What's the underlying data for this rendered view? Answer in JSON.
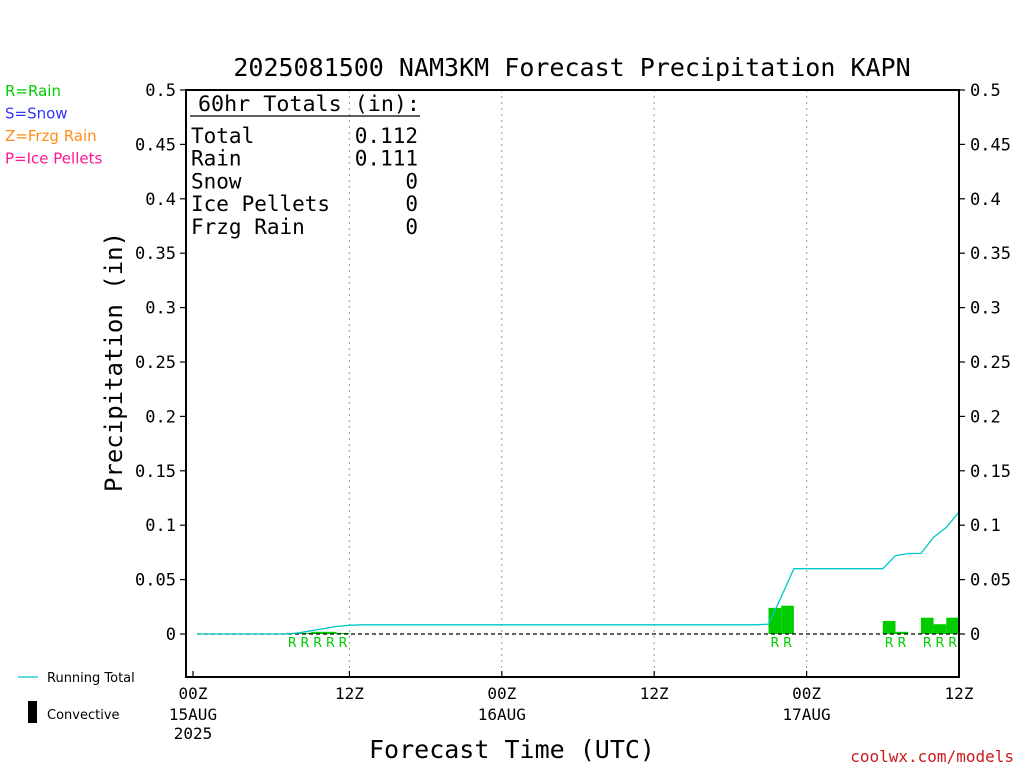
{
  "chart_data": {
    "type": "bar",
    "title": "2025081500 NAM3KM Forecast Precipitation KAPN",
    "xlabel": "Forecast Time (UTC)",
    "ylabel": "Precipitation (in)",
    "ylim": [
      -0.04,
      0.5
    ],
    "xlim_hours": [
      0,
      60
    ],
    "y_ticks": [
      "0.5",
      "0.45",
      "0.4",
      "0.35",
      "0.3",
      "0.25",
      "0.2",
      "0.15",
      "0.1",
      "0.05",
      "0"
    ],
    "x_ticks": [
      {
        "hour": 0,
        "line1": "00Z",
        "line2": "15AUG",
        "line3": "2025"
      },
      {
        "hour": 12,
        "line1": "12Z",
        "line2": "",
        "line3": ""
      },
      {
        "hour": 24,
        "line1": "00Z",
        "line2": "16AUG",
        "line3": ""
      },
      {
        "hour": 36,
        "line1": "12Z",
        "line2": "",
        "line3": ""
      },
      {
        "hour": 48,
        "line1": "00Z",
        "line2": "17AUG",
        "line3": ""
      },
      {
        "hour": 60,
        "line1": "12Z",
        "line2": "",
        "line3": ""
      }
    ],
    "grid": "vertical dotted at 12-hour intervals",
    "bars": [
      {
        "hour": 8,
        "value": 0.001,
        "type": "R"
      },
      {
        "hour": 9,
        "value": 0.001,
        "type": "R"
      },
      {
        "hour": 10,
        "value": 0.002,
        "type": "R"
      },
      {
        "hour": 11,
        "value": 0.002,
        "type": "R"
      },
      {
        "hour": 12,
        "value": 0.001,
        "type": "R"
      },
      {
        "hour": 46,
        "value": 0.024,
        "type": "R"
      },
      {
        "hour": 47,
        "value": 0.026,
        "type": "R"
      },
      {
        "hour": 55,
        "value": 0.012,
        "type": "R"
      },
      {
        "hour": 56,
        "value": 0.002,
        "type": "R"
      },
      {
        "hour": 58,
        "value": 0.015,
        "type": "R"
      },
      {
        "hour": 59,
        "value": 0.009,
        "type": "R"
      },
      {
        "hour": 60,
        "value": 0.015,
        "type": "R"
      }
    ],
    "running_total": {
      "name": "Running Total",
      "color": "#00c8c8",
      "points": [
        [
          0,
          0
        ],
        [
          7,
          0
        ],
        [
          8,
          0.001
        ],
        [
          9,
          0.003
        ],
        [
          10,
          0.005
        ],
        [
          11,
          0.007
        ],
        [
          12,
          0.008
        ],
        [
          13,
          0.0085
        ],
        [
          44,
          0.0085
        ],
        [
          45,
          0.009
        ],
        [
          46,
          0.034
        ],
        [
          47,
          0.06
        ],
        [
          54,
          0.06
        ],
        [
          55,
          0.072
        ],
        [
          56,
          0.074
        ],
        [
          57,
          0.074
        ],
        [
          58,
          0.089
        ],
        [
          59,
          0.098
        ],
        [
          60,
          0.112
        ]
      ]
    },
    "precip_type_labels": [
      {
        "hour": 8,
        "text": "R"
      },
      {
        "hour": 9,
        "text": "R"
      },
      {
        "hour": 10,
        "text": "R"
      },
      {
        "hour": 11,
        "text": "R"
      },
      {
        "hour": 12,
        "text": "R"
      },
      {
        "hour": 46,
        "text": "R"
      },
      {
        "hour": 47,
        "text": "R"
      },
      {
        "hour": 55,
        "text": "R"
      },
      {
        "hour": 56,
        "text": "R"
      },
      {
        "hour": 58,
        "text": "R"
      },
      {
        "hour": 59,
        "text": "R"
      },
      {
        "hour": 60,
        "text": "R"
      }
    ],
    "colors": {
      "rain": "#00cc00",
      "snow": "#3333ff",
      "frzg_rain": "#ff8c1a",
      "ice_pellets": "#ff1493",
      "zero_line": "#000000"
    }
  },
  "legend_types": [
    {
      "text": "R=Rain",
      "color": "#00cc00"
    },
    {
      "text": "S=Snow",
      "color": "#3333ff"
    },
    {
      "text": "Z=Frzg Rain",
      "color": "#ff8c1a"
    },
    {
      "text": "P=Ice Pellets",
      "color": "#ff1493"
    }
  ],
  "legend_bottom": {
    "running_total": "Running Total",
    "convective": "Convective"
  },
  "totals_box": {
    "header": "60hr Totals (in):",
    "rows": [
      {
        "label": "Total",
        "value": "0.112"
      },
      {
        "label": "Rain",
        "value": "0.111"
      },
      {
        "label": "Snow",
        "value": "0"
      },
      {
        "label": "Ice Pellets",
        "value": "0"
      },
      {
        "label": "Frzg Rain",
        "value": "0"
      }
    ]
  },
  "footer": "coolwx.com/models"
}
